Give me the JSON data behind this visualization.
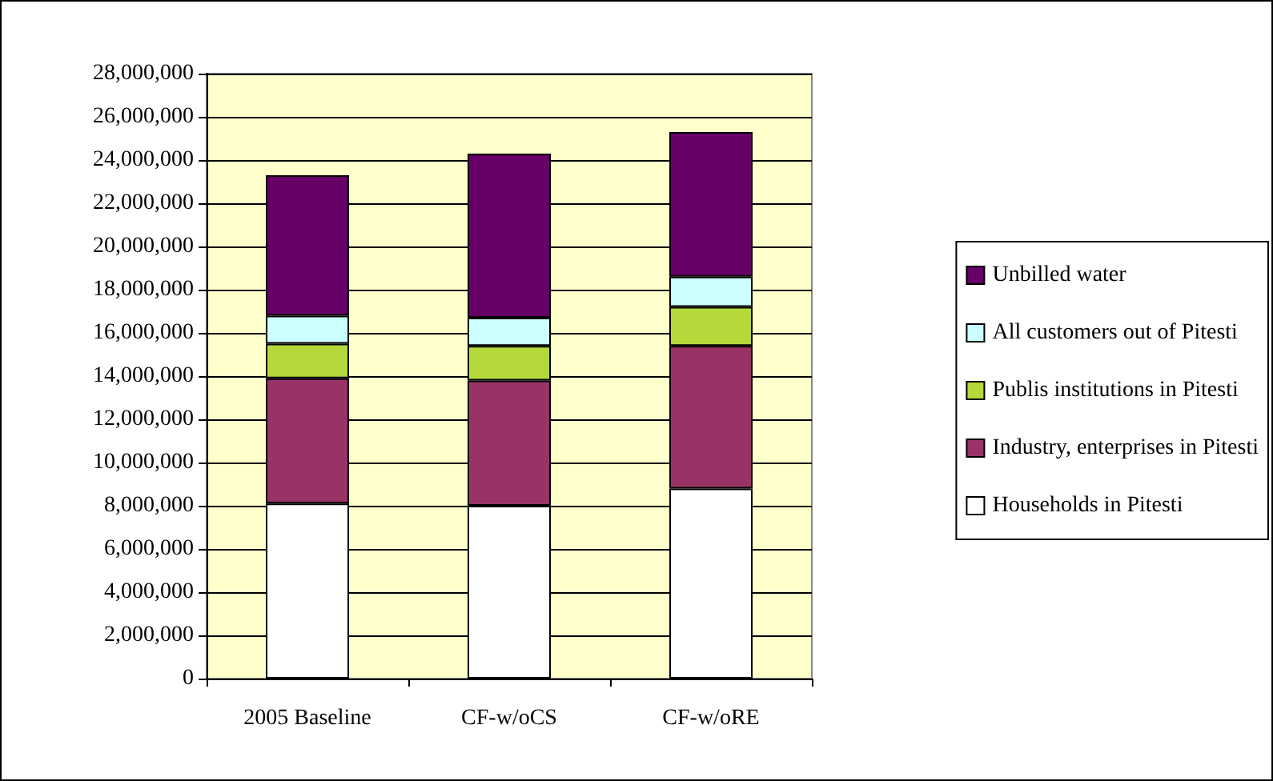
{
  "chart_data": {
    "type": "bar",
    "stacked": true,
    "categories": [
      "2005 Baseline",
      "CF-w/oCS",
      "CF-w/oRE"
    ],
    "series": [
      {
        "name": "Households in Pitesti",
        "color": "#ffffff",
        "values": [
          8100000,
          8000000,
          8800000
        ]
      },
      {
        "name": "Industry, enterprises in Pitesti",
        "color": "#993366",
        "values": [
          5800000,
          5800000,
          6600000
        ]
      },
      {
        "name": "Publis institutions in Pitesti",
        "color": "#b5d93a",
        "values": [
          1600000,
          1600000,
          1800000
        ]
      },
      {
        "name": "All customers out of Pitesti",
        "color": "#ccffff",
        "values": [
          1300000,
          1300000,
          1400000
        ]
      },
      {
        "name": "Unbilled water",
        "color": "#660066",
        "values": [
          6500000,
          7600000,
          6700000
        ]
      }
    ],
    "ylim": [
      0,
      28000000
    ],
    "yticks": [
      0,
      {
        "value": 2000000,
        "label": "2,000,000"
      },
      {
        "value": 4000000,
        "label": "4,000,000"
      },
      {
        "value": 6000000,
        "label": "6,000,000"
      },
      {
        "value": 8000000,
        "label": "8,000,000"
      },
      {
        "value": 10000000,
        "label": "10,000,000"
      },
      {
        "value": 12000000,
        "label": "12,000,000"
      },
      {
        "value": 14000000,
        "label": "14,000,000"
      },
      {
        "value": 16000000,
        "label": "16,000,000"
      },
      {
        "value": 18000000,
        "label": "18,000,000"
      },
      {
        "value": 20000000,
        "label": "20,000,000"
      },
      {
        "value": 22000000,
        "label": "22,000,000"
      },
      {
        "value": 24000000,
        "label": "24,000,000"
      },
      {
        "value": 26000000,
        "label": "26,000,000"
      },
      {
        "value": 28000000,
        "label": "28,000,000"
      }
    ],
    "grid": "y",
    "legend": "right"
  }
}
